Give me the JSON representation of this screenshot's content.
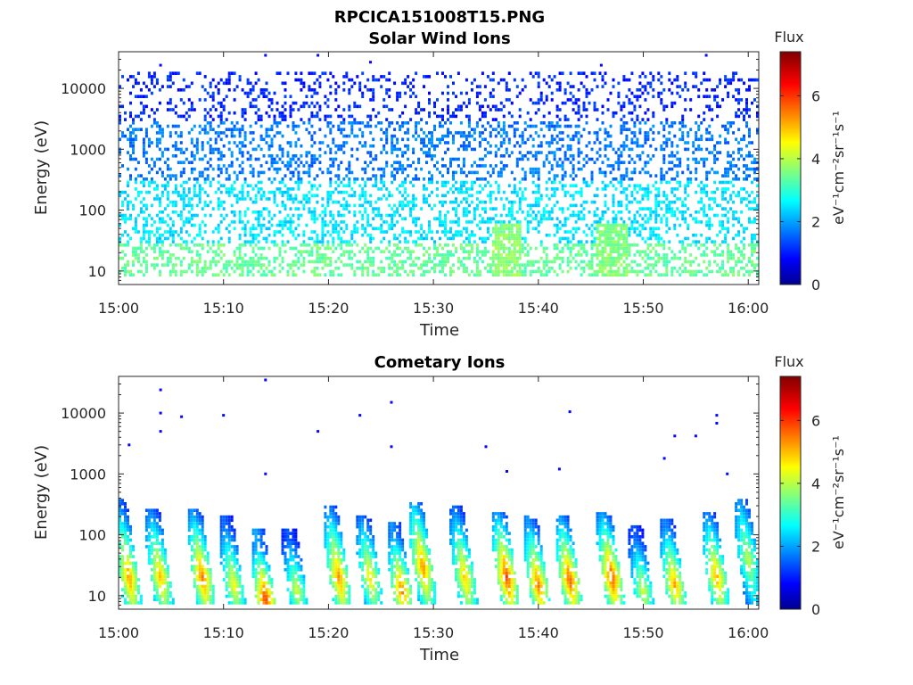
{
  "figure_title": "RPCICA151008T15.PNG",
  "colorbar": {
    "title": "Flux",
    "unit_label": "eV⁻¹cm⁻²sr⁻¹s⁻¹",
    "range": [
      0,
      7.4
    ],
    "ticks": [
      "0",
      "2",
      "4",
      "6"
    ],
    "colormap": "jet"
  },
  "chart_data": [
    {
      "type": "heatmap",
      "title": "Solar Wind Ions",
      "xlabel": "Time",
      "ylabel": "Energy (eV)",
      "x_ticks": [
        "15:00",
        "15:10",
        "15:20",
        "15:30",
        "15:40",
        "15:50",
        "16:00"
      ],
      "xlim": [
        "15:00",
        "16:01"
      ],
      "y_ticks": [
        "10",
        "100",
        "1000",
        "10000"
      ],
      "ylim": [
        6,
        40000
      ],
      "y_scale": "log",
      "bands": [
        {
          "energy_range": [
            8,
            30
          ],
          "typical_flux": 3.5
        },
        {
          "energy_range": [
            30,
            300
          ],
          "typical_flux": 2.6
        },
        {
          "energy_range": [
            300,
            3000
          ],
          "typical_flux": 1.8
        },
        {
          "energy_range": [
            3000,
            20000
          ],
          "typical_flux": 1.2
        }
      ],
      "enhancements": [
        {
          "time": "15:37",
          "energy_range": [
            8,
            60
          ],
          "peak_flux": 3.8
        },
        {
          "time": "15:47",
          "energy_range": [
            8,
            60
          ],
          "peak_flux": 3.7
        }
      ],
      "sparse_high_energy_points": [
        {
          "time": "15:04",
          "energy": 24000
        },
        {
          "time": "15:14",
          "energy": 35000
        },
        {
          "time": "15:19",
          "energy": 35000
        },
        {
          "time": "15:24",
          "energy": 27000
        },
        {
          "time": "15:46",
          "energy": 24000
        },
        {
          "time": "15:56",
          "energy": 35000
        }
      ]
    },
    {
      "type": "heatmap",
      "title": "Cometary Ions",
      "xlabel": "Time",
      "ylabel": "Energy (eV)",
      "x_ticks": [
        "15:00",
        "15:10",
        "15:20",
        "15:30",
        "15:40",
        "15:50",
        "16:00"
      ],
      "xlim": [
        "15:00",
        "16:01"
      ],
      "y_ticks": [
        "10",
        "100",
        "1000",
        "10000"
      ],
      "ylim": [
        6,
        40000
      ],
      "y_scale": "log",
      "bursts": [
        {
          "time": "15:01",
          "peak_energy": 20,
          "top_energy": 380,
          "peak_flux": 5.5
        },
        {
          "time": "15:04",
          "peak_energy": 20,
          "top_energy": 280,
          "peak_flux": 5.3
        },
        {
          "time": "15:08",
          "peak_energy": 20,
          "top_energy": 260,
          "peak_flux": 5.8
        },
        {
          "time": "15:11",
          "peak_energy": 15,
          "top_energy": 200,
          "peak_flux": 4.8
        },
        {
          "time": "15:14",
          "peak_energy": 9,
          "top_energy": 120,
          "peak_flux": 6.3
        },
        {
          "time": "15:17",
          "peak_energy": 12,
          "top_energy": 130,
          "peak_flux": 4.5
        },
        {
          "time": "15:21",
          "peak_energy": 20,
          "top_energy": 320,
          "peak_flux": 5.6
        },
        {
          "time": "15:24",
          "peak_energy": 20,
          "top_energy": 200,
          "peak_flux": 5.0
        },
        {
          "time": "15:27",
          "peak_energy": 12,
          "top_energy": 160,
          "peak_flux": 5.8
        },
        {
          "time": "15:29",
          "peak_energy": 30,
          "top_energy": 350,
          "peak_flux": 5.6
        },
        {
          "time": "15:33",
          "peak_energy": 20,
          "top_energy": 300,
          "peak_flux": 5.2
        },
        {
          "time": "15:37",
          "peak_energy": 20,
          "top_energy": 240,
          "peak_flux": 6.2
        },
        {
          "time": "15:40",
          "peak_energy": 15,
          "top_energy": 220,
          "peak_flux": 5.8
        },
        {
          "time": "15:43",
          "peak_energy": 18,
          "top_energy": 220,
          "peak_flux": 6.0
        },
        {
          "time": "15:47",
          "peak_energy": 20,
          "top_energy": 230,
          "peak_flux": 6.1
        },
        {
          "time": "15:50",
          "peak_energy": 12,
          "top_energy": 150,
          "peak_flux": 4.5
        },
        {
          "time": "15:53",
          "peak_energy": 15,
          "top_energy": 180,
          "peak_flux": 5.5
        },
        {
          "time": "15:57",
          "peak_energy": 20,
          "top_energy": 240,
          "peak_flux": 5.4
        },
        {
          "time": "16:00",
          "peak_energy": 40,
          "top_energy": 400,
          "peak_flux": 4.3
        }
      ],
      "sparse_high_energy_points": [
        {
          "time": "15:01",
          "energy": 3000
        },
        {
          "time": "15:04",
          "energy": 24000
        },
        {
          "time": "15:04",
          "energy": 10000
        },
        {
          "time": "15:04",
          "energy": 5000
        },
        {
          "time": "15:06",
          "energy": 8700
        },
        {
          "time": "15:10",
          "energy": 9200
        },
        {
          "time": "15:14",
          "energy": 35000
        },
        {
          "time": "15:14",
          "energy": 1000
        },
        {
          "time": "15:19",
          "energy": 5000
        },
        {
          "time": "15:23",
          "energy": 9200
        },
        {
          "time": "15:26",
          "energy": 2800
        },
        {
          "time": "15:26",
          "energy": 15000
        },
        {
          "time": "15:35",
          "energy": 2800
        },
        {
          "time": "15:37",
          "energy": 1100
        },
        {
          "time": "15:42",
          "energy": 1200
        },
        {
          "time": "15:43",
          "energy": 10500
        },
        {
          "time": "15:52",
          "energy": 1800
        },
        {
          "time": "15:53",
          "energy": 4200
        },
        {
          "time": "15:55",
          "energy": 4200
        },
        {
          "time": "15:57",
          "energy": 9200
        },
        {
          "time": "15:57",
          "energy": 6800
        },
        {
          "time": "15:58",
          "energy": 1000
        }
      ]
    }
  ]
}
